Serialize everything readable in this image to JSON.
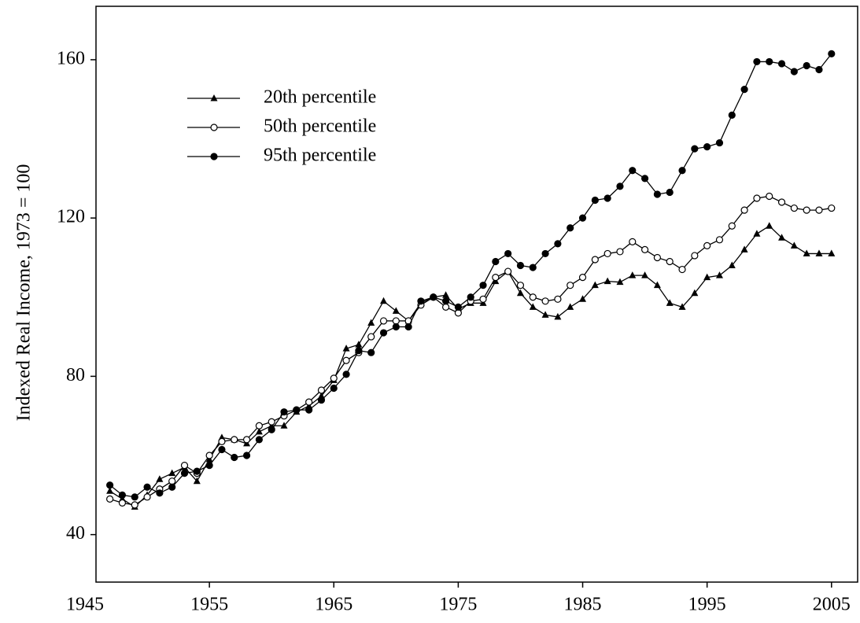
{
  "chart_data": {
    "type": "line",
    "ylabel": "Indexed Real Income, 1973 = 100",
    "x": [
      1947,
      1948,
      1949,
      1950,
      1951,
      1952,
      1953,
      1954,
      1955,
      1956,
      1957,
      1958,
      1959,
      1960,
      1961,
      1962,
      1963,
      1964,
      1965,
      1966,
      1967,
      1968,
      1969,
      1970,
      1971,
      1972,
      1973,
      1974,
      1975,
      1976,
      1977,
      1978,
      1979,
      1980,
      1981,
      1982,
      1983,
      1984,
      1985,
      1986,
      1987,
      1988,
      1989,
      1990,
      1991,
      1992,
      1993,
      1994,
      1995,
      1996,
      1997,
      1998,
      1999,
      2000,
      2001,
      2002,
      2003,
      2004,
      2005
    ],
    "series": [
      {
        "name": "20th percentile",
        "color": "#000000",
        "marker": "triangle",
        "values": [
          51,
          49,
          47,
          50,
          54,
          55.5,
          57,
          53.5,
          59,
          64.5,
          64,
          63,
          66,
          67.5,
          67.5,
          71,
          72.5,
          75,
          79,
          87,
          88,
          93.5,
          99,
          96.5,
          94,
          98.5,
          100,
          100.5,
          97,
          98.5,
          98.5,
          104,
          106.5,
          101,
          97.5,
          95.5,
          95,
          97.5,
          99.5,
          103,
          104,
          103.8,
          105.5,
          105.5,
          103,
          98.5,
          97.5,
          101,
          105,
          105.5,
          108,
          112,
          116,
          118,
          115,
          113,
          111,
          111,
          111
        ]
      },
      {
        "name": "50th percentile",
        "color": "#000000",
        "marker": "open-circle",
        "values": [
          49,
          48,
          47.5,
          49.5,
          51.5,
          53.5,
          57.5,
          55.5,
          60,
          63.5,
          64,
          64,
          67.5,
          68.5,
          70,
          71.5,
          73.5,
          76.5,
          79.5,
          84,
          86,
          90,
          94,
          94,
          94,
          98,
          100,
          97.5,
          96,
          99,
          99.5,
          105,
          106.5,
          103,
          100,
          99,
          99.5,
          103,
          105,
          109.5,
          111,
          111.5,
          114,
          112,
          110,
          109,
          107,
          110.5,
          113,
          114.5,
          118,
          122,
          125,
          125.5,
          124,
          122.5,
          122,
          122,
          122.5
        ]
      },
      {
        "name": "95th percentile",
        "color": "#000000",
        "marker": "filled-circle",
        "values": [
          52.5,
          50,
          49.5,
          52,
          50.5,
          52,
          55.5,
          56,
          57.5,
          61.5,
          59.5,
          60,
          64,
          66.5,
          71,
          71.5,
          71.5,
          74,
          77,
          80.5,
          86.5,
          86,
          91,
          92.5,
          92.5,
          99,
          100,
          99,
          97.5,
          100,
          103,
          109,
          111,
          108,
          107.5,
          111,
          113.5,
          117.5,
          120,
          124.5,
          125,
          128,
          132,
          130,
          126,
          126.5,
          132,
          137.5,
          138,
          139,
          146,
          152.5,
          159.5,
          159.5,
          159,
          157,
          158.5,
          157.5,
          161.5
        ]
      }
    ],
    "xlim": [
      1945,
      2007.1
    ],
    "xticks": [
      1945,
      1955,
      1965,
      1975,
      1985,
      1995,
      2005
    ],
    "ylim": [
      28,
      173.5
    ],
    "yticks": [
      40,
      80,
      120,
      160
    ],
    "grid": false,
    "legend": "upper left"
  }
}
